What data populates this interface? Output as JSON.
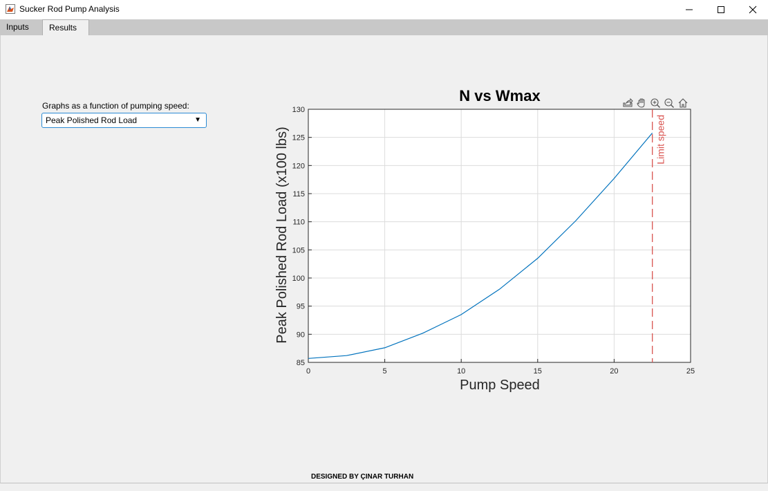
{
  "window": {
    "title": "Sucker Rod Pump Analysis"
  },
  "tabs": [
    {
      "label": "Inputs",
      "selected": false
    },
    {
      "label": "Results",
      "selected": true
    }
  ],
  "graph_selector": {
    "label": "Graphs as a function of pumping speed:",
    "selected": "Peak Polished Rod Load"
  },
  "axes_toolbar": [
    "export-icon",
    "pan-icon",
    "zoom-in-icon",
    "zoom-out-icon",
    "home-icon"
  ],
  "chart_data": {
    "type": "line",
    "title": "N vs Wmax",
    "xlabel": "Pump Speed",
    "ylabel": "Peak Polished Rod Load (x100 lbs)",
    "xlim": [
      0,
      25
    ],
    "ylim": [
      85,
      130
    ],
    "xticks": [
      0,
      5,
      10,
      15,
      20,
      25
    ],
    "yticks": [
      85,
      90,
      95,
      100,
      105,
      110,
      115,
      120,
      125,
      130
    ],
    "grid": true,
    "series": [
      {
        "color": "#0072bd",
        "x": [
          0,
          2.5,
          5,
          7.5,
          10,
          12.5,
          15,
          17.5,
          20,
          22.5
        ],
        "y": [
          85.7,
          86.2,
          87.6,
          90.2,
          93.5,
          98.0,
          103.5,
          110.2,
          117.7,
          125.8
        ]
      }
    ],
    "annotations": [
      {
        "type": "vline",
        "x": 22.5,
        "style": "dashed",
        "color": "#d9534f",
        "label": "Limit speed"
      }
    ]
  },
  "footer": {
    "text": "DESIGNED BY ÇINAR TURHAN"
  }
}
